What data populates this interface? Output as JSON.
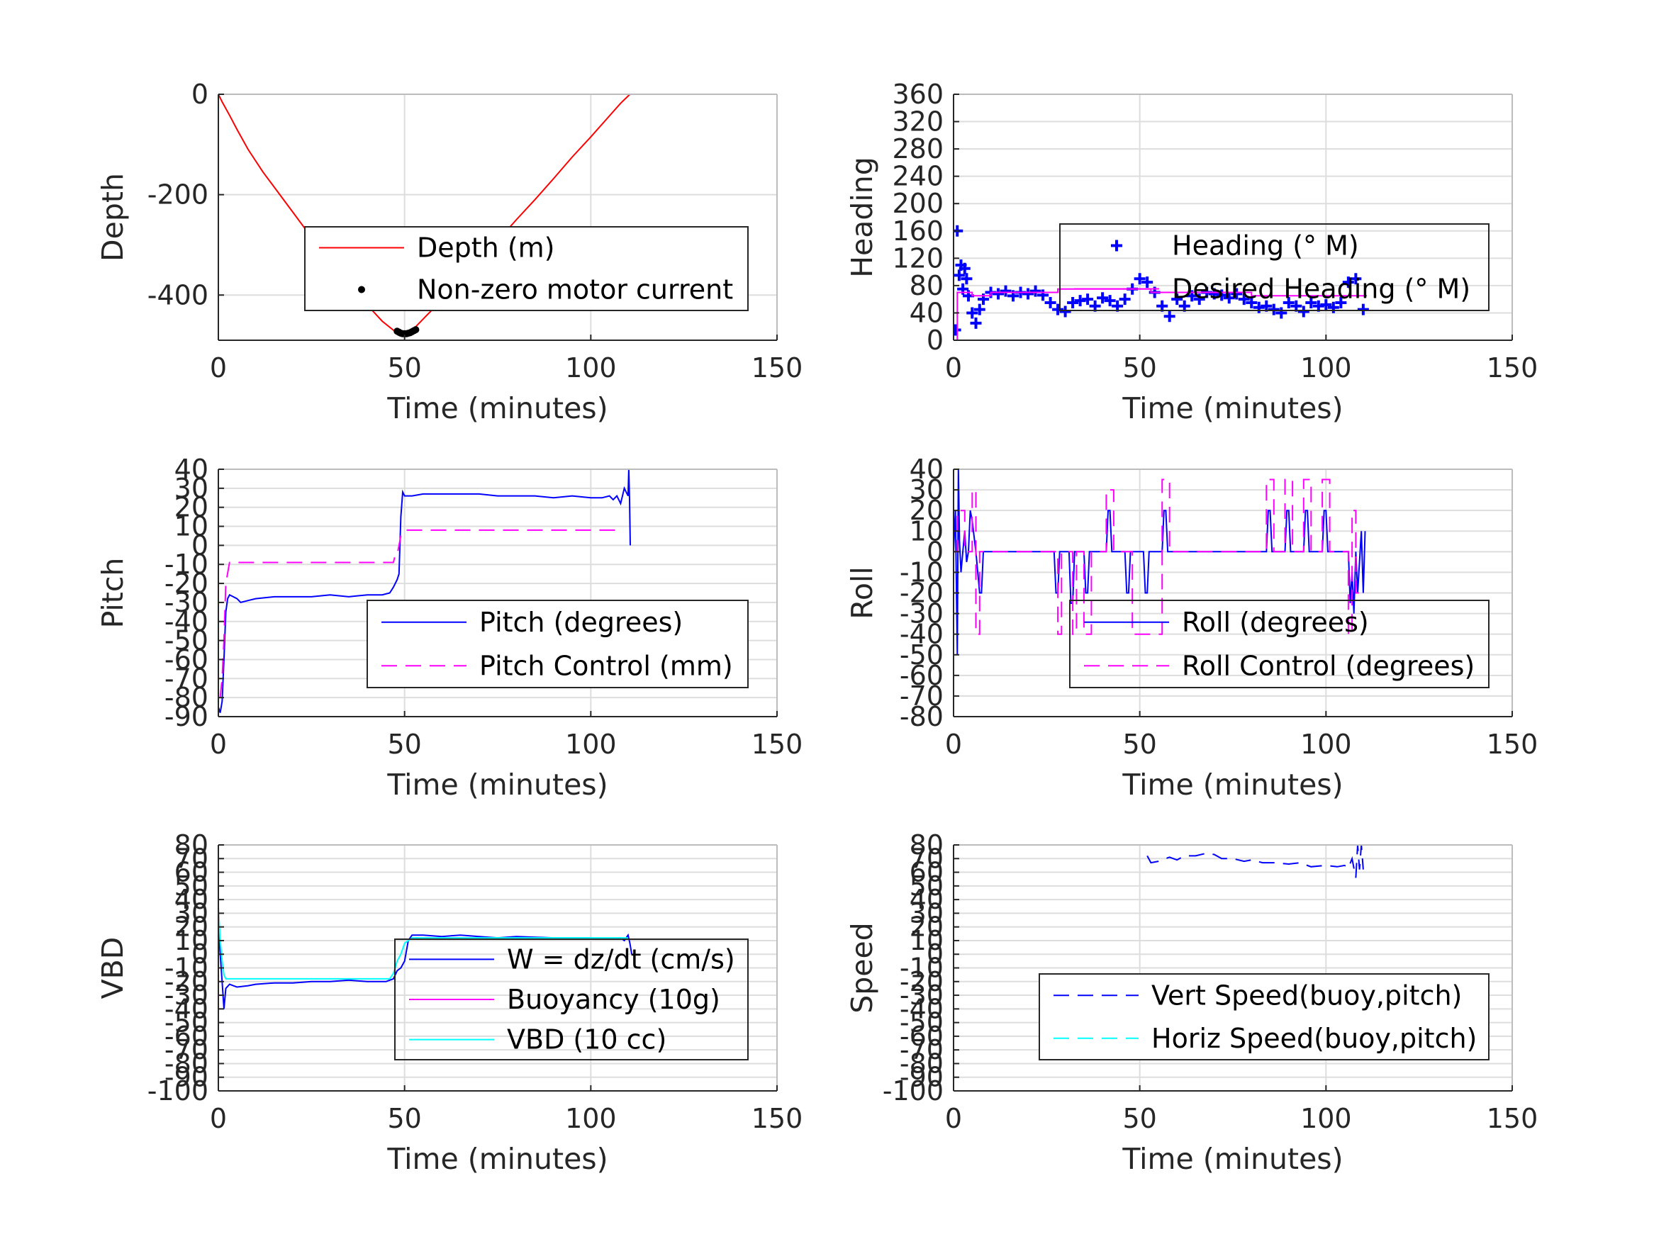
{
  "chart_data": [
    {
      "type": "line",
      "ylabel": "Depth",
      "xlabel": "Time (minutes)",
      "xlim": [
        0,
        150
      ],
      "ylim": [
        -490,
        0
      ],
      "xticks": [
        0,
        50,
        100,
        150
      ],
      "yticks": [
        -400,
        -200,
        0
      ],
      "grid": true,
      "legend_position": "bottom-right",
      "series": [
        {
          "name": "Depth (m)",
          "color": "#ff0000",
          "style": "solid",
          "x": [
            0,
            1,
            3,
            5,
            8,
            12,
            16,
            20,
            25,
            30,
            35,
            40,
            44,
            47,
            49,
            51,
            53,
            56,
            60,
            65,
            70,
            75,
            80,
            85,
            90,
            95,
            100,
            105,
            108,
            110.5
          ],
          "y": [
            0,
            -15,
            -42,
            -70,
            -110,
            -155,
            -195,
            -235,
            -285,
            -330,
            -375,
            -420,
            -452,
            -470,
            -477,
            -474,
            -463,
            -440,
            -410,
            -375,
            -335,
            -292,
            -250,
            -210,
            -168,
            -125,
            -85,
            -43,
            -18,
            0
          ]
        },
        {
          "name": "Non-zero motor current",
          "color": "#000000",
          "style": "dots",
          "x": [
            48,
            48.5,
            49,
            49.5,
            50,
            50.5,
            51,
            51.5,
            52,
            52.5,
            53
          ],
          "y": [
            -472,
            -474,
            -476,
            -477,
            -477,
            -477,
            -476,
            -475,
            -473,
            -471,
            -469
          ]
        }
      ]
    },
    {
      "type": "scatter",
      "ylabel": "Heading",
      "xlabel": "Time (minutes)",
      "xlim": [
        0,
        150
      ],
      "ylim": [
        0,
        360
      ],
      "xticks": [
        0,
        50,
        100,
        150
      ],
      "yticks": [
        0,
        40,
        80,
        120,
        160,
        200,
        240,
        280,
        320,
        360
      ],
      "grid": true,
      "legend_position": "top-right",
      "series": [
        {
          "name": "Heading (° M)",
          "color": "#0000ff",
          "style": "plus",
          "x": [
            0.5,
            1,
            1.5,
            2,
            2.5,
            3,
            3.5,
            4,
            5,
            6,
            7,
            8,
            10,
            12,
            14,
            16,
            18,
            20,
            22,
            24,
            26,
            28,
            30,
            32,
            34,
            36,
            38,
            40,
            42,
            44,
            46,
            48,
            50,
            52,
            54,
            56,
            58,
            60,
            62,
            64,
            66,
            68,
            70,
            72,
            74,
            76,
            78,
            80,
            82,
            84,
            86,
            88,
            90,
            92,
            94,
            96,
            98,
            100,
            102,
            104,
            106,
            108,
            110
          ],
          "y": [
            15,
            160,
            95,
            110,
            75,
            105,
            90,
            65,
            40,
            25,
            45,
            60,
            70,
            68,
            72,
            65,
            70,
            68,
            72,
            66,
            55,
            45,
            42,
            55,
            58,
            60,
            50,
            62,
            58,
            50,
            60,
            75,
            90,
            85,
            70,
            50,
            35,
            60,
            50,
            65,
            60,
            70,
            68,
            66,
            62,
            68,
            60,
            55,
            48,
            50,
            45,
            40,
            55,
            50,
            42,
            55,
            50,
            52,
            48,
            55,
            85,
            90,
            45
          ]
        },
        {
          "name": "Desired Heading (° M)",
          "color": "#ff00ff",
          "style": "step",
          "x": [
            0,
            1,
            1,
            5,
            5,
            10,
            10,
            28,
            28,
            53,
            53,
            80,
            80,
            111
          ],
          "y": [
            0,
            0,
            70,
            70,
            65,
            65,
            70,
            70,
            75,
            75,
            70,
            70,
            65,
            65
          ]
        }
      ]
    },
    {
      "type": "line",
      "ylabel": "Pitch",
      "xlabel": "Time (minutes)",
      "xlim": [
        0,
        150
      ],
      "ylim": [
        -90,
        40
      ],
      "xticks": [
        0,
        50,
        100,
        150
      ],
      "yticks": [
        -90,
        -80,
        -70,
        -60,
        -50,
        -40,
        -30,
        -20,
        -10,
        0,
        10,
        20,
        30,
        40
      ],
      "grid": true,
      "legend_position": "bottom-right",
      "series": [
        {
          "name": "Pitch (degrees)",
          "color": "#0000ff",
          "style": "solid",
          "x": [
            0,
            0.5,
            1,
            1.5,
            2,
            2.5,
            3,
            4,
            5,
            6,
            8,
            10,
            15,
            20,
            25,
            30,
            35,
            40,
            44,
            46,
            47,
            48,
            48.5,
            49,
            49.5,
            50,
            52,
            55,
            60,
            65,
            70,
            75,
            80,
            85,
            90,
            95,
            100,
            103,
            105,
            106,
            107,
            108,
            109,
            110,
            110.2,
            110.4,
            110.6
          ],
          "y": [
            -85,
            -88,
            -82,
            -60,
            -35,
            -28,
            -26,
            -27,
            -28,
            -30,
            -29,
            -28,
            -27,
            -27,
            -27,
            -26,
            -27,
            -26,
            -26,
            -25,
            -22,
            -18,
            -15,
            15,
            28,
            26,
            26,
            27,
            27,
            27,
            27,
            26,
            26,
            26,
            25,
            26,
            25,
            25,
            26,
            24,
            26,
            22,
            30,
            26,
            40,
            24,
            0
          ]
        },
        {
          "name": "Pitch Control (mm)",
          "color": "#ff00ff",
          "style": "dashed",
          "x": [
            0.5,
            1,
            1.5,
            2,
            3,
            5,
            10,
            20,
            30,
            40,
            47,
            47.5,
            48,
            49,
            50,
            60,
            70,
            80,
            90,
            100,
            106,
            108
          ],
          "y": [
            -80,
            -70,
            -50,
            -20,
            -9,
            -9,
            -9,
            -9,
            -9,
            -9,
            -9,
            -5,
            -5,
            5,
            8,
            8,
            8,
            8,
            8,
            8,
            8,
            8
          ]
        }
      ]
    },
    {
      "type": "line",
      "ylabel": "Roll",
      "xlabel": "Time (minutes)",
      "xlim": [
        0,
        150
      ],
      "ylim": [
        -80,
        40
      ],
      "xticks": [
        0,
        50,
        100,
        150
      ],
      "yticks": [
        -80,
        -70,
        -60,
        -50,
        -40,
        -30,
        -20,
        -10,
        0,
        10,
        20,
        30,
        40
      ],
      "grid": true,
      "legend_position": "bottom-right",
      "series": [
        {
          "name": "Roll (degrees)",
          "color": "#0000ff",
          "style": "solid",
          "x": [
            0,
            0.5,
            1,
            1.3,
            1.6,
            2,
            2.5,
            3,
            3.5,
            4,
            4.5,
            5,
            6,
            7,
            7.5,
            8,
            9,
            10,
            20,
            27,
            27.5,
            28,
            28.5,
            29,
            31,
            31.5,
            32,
            32.5,
            33,
            35,
            35.5,
            36,
            36.5,
            37,
            40,
            41,
            41.5,
            42,
            42.5,
            43,
            46,
            46.5,
            47,
            47.5,
            48,
            51,
            51.5,
            52,
            52.5,
            53,
            55,
            56,
            56.5,
            57,
            57.5,
            58,
            60,
            70,
            80,
            83,
            84,
            84.5,
            85,
            85.5,
            86,
            89,
            89.5,
            90,
            90.5,
            91,
            94,
            94.5,
            95,
            95.5,
            96,
            99,
            99.5,
            100,
            100.5,
            101,
            103,
            104,
            105,
            106,
            106.5,
            107,
            107.5,
            108,
            108.5,
            109,
            109.5,
            110,
            110.5
          ],
          "y": [
            0,
            20,
            -50,
            40,
            5,
            -10,
            0,
            10,
            -5,
            0,
            20,
            15,
            0,
            -20,
            -20,
            0,
            0,
            0,
            0,
            0,
            -20,
            -20,
            0,
            0,
            0,
            -25,
            -25,
            0,
            0,
            0,
            -20,
            -20,
            0,
            0,
            0,
            0,
            20,
            20,
            0,
            0,
            0,
            -20,
            -20,
            0,
            0,
            0,
            -20,
            -20,
            0,
            0,
            0,
            0,
            20,
            20,
            0,
            0,
            0,
            0,
            0,
            0,
            0,
            20,
            20,
            0,
            0,
            0,
            20,
            20,
            0,
            0,
            0,
            20,
            20,
            0,
            0,
            0,
            20,
            20,
            0,
            0,
            0,
            0,
            0,
            0,
            -25,
            -10,
            -30,
            0,
            -20,
            -5,
            10,
            -20,
            10
          ]
        },
        {
          "name": "Roll Control (degrees)",
          "color": "#ff00ff",
          "style": "dashed",
          "x": [
            0,
            1,
            1,
            3,
            3,
            5,
            5,
            6,
            6,
            7,
            7,
            28,
            28,
            29,
            29,
            32,
            32,
            33,
            33,
            35,
            35,
            37,
            37,
            41,
            41,
            43,
            43,
            48,
            48,
            56,
            56,
            58,
            58,
            84,
            84,
            86,
            86,
            89,
            89,
            91,
            91,
            94,
            94,
            96,
            96,
            99,
            99,
            101,
            101,
            106,
            106,
            107,
            107,
            108,
            108,
            110
          ],
          "y": [
            0,
            0,
            20,
            20,
            0,
            0,
            30,
            30,
            -40,
            -40,
            0,
            0,
            -40,
            -40,
            0,
            0,
            -40,
            -40,
            0,
            0,
            -40,
            -40,
            0,
            0,
            30,
            30,
            0,
            0,
            -40,
            -40,
            35,
            35,
            0,
            0,
            35,
            35,
            0,
            0,
            35,
            35,
            0,
            0,
            35,
            35,
            0,
            0,
            35,
            35,
            0,
            0,
            -40,
            -40,
            20,
            20,
            -20,
            -20
          ]
        }
      ]
    },
    {
      "type": "line",
      "ylabel": "VBD",
      "xlabel": "Time (minutes)",
      "xlim": [
        0,
        150
      ],
      "ylim": [
        -100,
        80
      ],
      "xticks": [
        0,
        50,
        100,
        150
      ],
      "yticks": [
        -100,
        -90,
        -80,
        -70,
        -60,
        -50,
        -40,
        -30,
        -20,
        -10,
        0,
        10,
        20,
        30,
        40,
        50,
        60,
        70,
        80
      ],
      "grid": true,
      "legend_position": "top-right",
      "series": [
        {
          "name": "W = dz/dt (cm/s)",
          "color": "#0000ff",
          "style": "solid",
          "x": [
            0,
            0.5,
            1,
            1.5,
            2,
            3,
            4,
            5,
            8,
            10,
            15,
            20,
            25,
            30,
            35,
            40,
            45,
            46,
            47,
            48,
            49,
            50,
            51,
            52,
            55,
            60,
            65,
            70,
            75,
            80,
            90,
            100,
            105,
            108,
            109,
            110,
            110.5,
            111
          ],
          "y": [
            20,
            0,
            -20,
            -40,
            -25,
            -22,
            -23,
            -24,
            -23,
            -22,
            -21,
            -21,
            -20,
            -20,
            -19,
            -20,
            -20,
            -19,
            -18,
            -12,
            -10,
            -5,
            10,
            14,
            14,
            13,
            14,
            13,
            12,
            13,
            12,
            12,
            11,
            12,
            10,
            14,
            8,
            0
          ]
        },
        {
          "name": "Buoyancy (10g)",
          "color": "#ff00ff",
          "style": "solid",
          "x": [],
          "y": []
        },
        {
          "name": "VBD (10 cc)",
          "color": "#00ffff",
          "style": "solid",
          "x": [
            0,
            0.5,
            1,
            1.5,
            2,
            3,
            5,
            10,
            20,
            30,
            40,
            46,
            47,
            48,
            49,
            50,
            52,
            60,
            70,
            80,
            90,
            100,
            105,
            108,
            110
          ],
          "y": [
            35,
            10,
            -5,
            -15,
            -18,
            -18,
            -18,
            -18,
            -18,
            -18,
            -18,
            -18,
            -14,
            -5,
            0,
            8,
            12,
            12,
            12,
            12,
            12,
            12,
            12,
            12,
            12
          ]
        }
      ]
    },
    {
      "type": "line",
      "ylabel": "Speed",
      "xlabel": "Time (minutes)",
      "xlim": [
        0,
        150
      ],
      "ylim": [
        -100,
        80
      ],
      "xticks": [
        0,
        50,
        100,
        150
      ],
      "yticks": [
        -100,
        -90,
        -80,
        -70,
        -60,
        -50,
        -40,
        -30,
        -20,
        -10,
        0,
        10,
        20,
        30,
        40,
        50,
        60,
        70,
        80
      ],
      "grid": true,
      "legend_position": "bottom-right",
      "series": [
        {
          "name": "Vert Speed(buoy,pitch)",
          "color": "#0000ff",
          "style": "dashed",
          "x": [
            52,
            53,
            55,
            58,
            60,
            62,
            65,
            68,
            70,
            72,
            75,
            78,
            80,
            83,
            86,
            90,
            93,
            96,
            100,
            103,
            105,
            106,
            107,
            108,
            108.5,
            109,
            109.5,
            110
          ],
          "y": [
            72,
            67,
            68,
            71,
            69,
            72,
            72,
            74,
            73,
            70,
            70,
            68,
            69,
            67,
            67,
            66,
            67,
            64,
            65,
            64,
            65,
            63,
            70,
            56,
            80,
            62,
            80,
            62
          ]
        },
        {
          "name": "Horiz Speed(buoy,pitch)",
          "color": "#00ffff",
          "style": "dashed",
          "x": [],
          "y": []
        }
      ]
    }
  ]
}
